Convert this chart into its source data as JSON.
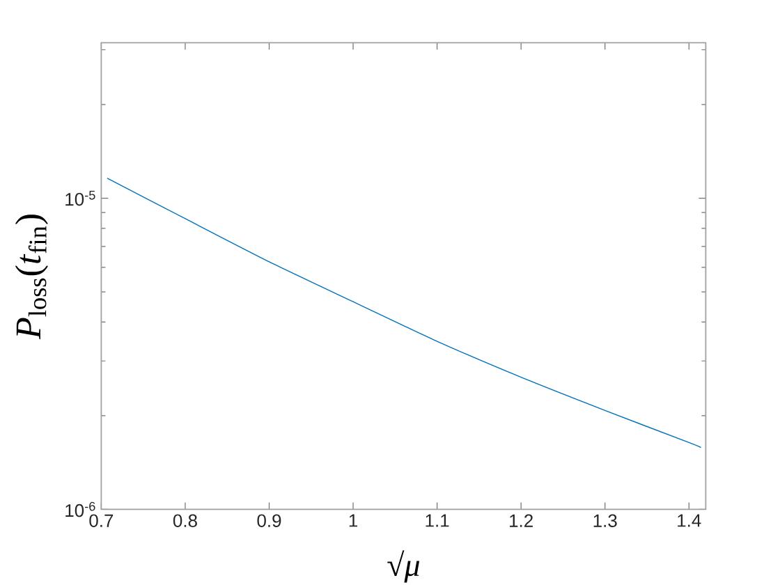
{
  "chart_data": {
    "type": "line",
    "xlabel": "√*μ*",
    "ylabel": "*P*$_{loss}$(*t*$_{fin}$)",
    "x": [
      0.7071,
      0.8,
      0.9,
      1.0,
      1.1,
      1.2,
      1.3,
      1.4,
      1.4142
    ],
    "series": [
      {
        "color": "#0072bd",
        "values": [
          1.16e-05,
          8.6e-06,
          6.25e-06,
          4.65e-06,
          3.47e-06,
          2.66e-06,
          2.08e-06,
          1.64e-06,
          1.58e-06
        ]
      }
    ],
    "xlim": [
      0.7,
      1.42
    ],
    "ylim": [
      1e-06,
      3.16e-05
    ],
    "xticks": [
      0.7,
      0.8,
      0.9,
      1,
      1.1,
      1.2,
      1.3,
      1.4
    ],
    "yticks": [
      {
        "value": 1e-06,
        "label": "10$^{-6}$"
      },
      {
        "value": 2e-06,
        "label": null
      },
      {
        "value": 3e-06,
        "label": null
      },
      {
        "value": 4e-06,
        "label": null
      },
      {
        "value": 5e-06,
        "label": null
      },
      {
        "value": 6e-06,
        "label": null
      },
      {
        "value": 7e-06,
        "label": null
      },
      {
        "value": 8e-06,
        "label": null
      },
      {
        "value": 9e-06,
        "label": null
      },
      {
        "value": 1e-05,
        "label": "10$^{-5}$"
      },
      {
        "value": 2e-05,
        "label": null
      },
      {
        "value": 3e-05,
        "label": null
      }
    ],
    "log": "y",
    "line_style": "solid"
  }
}
